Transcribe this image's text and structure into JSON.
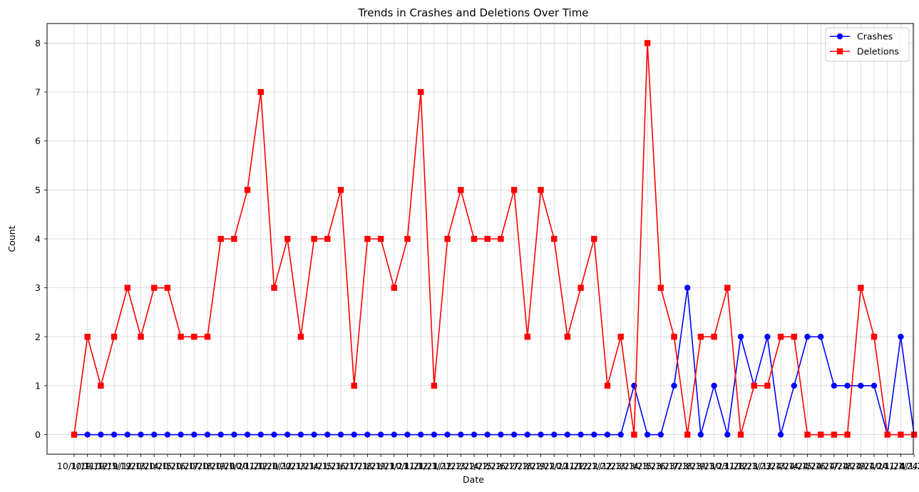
{
  "chart_data": {
    "type": "line",
    "title": "Trends in Crashes and Deletions Over Time",
    "xlabel": "Date",
    "ylabel": "Count",
    "ylim": [
      -0.4,
      8.4
    ],
    "yticks": [
      0,
      1,
      2,
      3,
      4,
      5,
      6,
      7,
      8
    ],
    "grid": true,
    "legend_position": "top-right",
    "x_tick_labels_overlapping": true,
    "categories": [
      "10/1/19",
      "10/1/19",
      "11/1/19",
      "12/1/19",
      "1/1/20",
      "2/1/20",
      "3/1/20",
      "4/1/20",
      "5/1/20",
      "6/1/20",
      "7/1/20",
      "8/1/20",
      "9/1/20",
      "10/1/20",
      "11/1/20",
      "12/1/20",
      "1/1/21",
      "2/1/21",
      "3/1/21",
      "4/1/21",
      "5/1/21",
      "6/1/21",
      "7/1/21",
      "8/1/21",
      "9/1/21",
      "10/1/21",
      "11/1/21",
      "12/1/21",
      "1/1/22",
      "2/1/22",
      "3/1/22",
      "4/1/22",
      "5/1/22",
      "6/1/22",
      "7/1/22",
      "8/1/22",
      "9/1/22",
      "10/1/22",
      "11/1/22",
      "12/1/22",
      "1/1/23",
      "2/1/23",
      "3/1/23",
      "4/1/23",
      "5/1/23",
      "6/1/23",
      "7/1/23",
      "8/1/23",
      "9/1/23",
      "10/1/23",
      "11/1/23",
      "12/1/23",
      "1/1/24",
      "2/1/24",
      "3/1/24",
      "4/1/24",
      "5/1/24",
      "6/1/24",
      "7/1/24",
      "8/1/24",
      "9/1/24",
      "10/1/24",
      "11/1/24",
      "4/1/24"
    ],
    "series": [
      {
        "name": "Crashes",
        "color": "#0000ff",
        "marker": "circle",
        "values": [
          0,
          0,
          0,
          0,
          0,
          0,
          0,
          0,
          0,
          0,
          0,
          0,
          0,
          0,
          0,
          0,
          0,
          0,
          0,
          0,
          0,
          0,
          0,
          0,
          0,
          0,
          0,
          0,
          0,
          0,
          0,
          0,
          0,
          0,
          0,
          0,
          0,
          0,
          0,
          0,
          0,
          0,
          1,
          0,
          0,
          1,
          3,
          0,
          1,
          0,
          2,
          1,
          2,
          0,
          1,
          2,
          2,
          1,
          1,
          1,
          1,
          0,
          2,
          0
        ]
      },
      {
        "name": "Deletions",
        "color": "#ff0000",
        "marker": "square",
        "values": [
          0,
          2,
          1,
          2,
          3,
          2,
          3,
          3,
          2,
          2,
          2,
          4,
          4,
          5,
          7,
          3,
          4,
          2,
          4,
          4,
          5,
          1,
          4,
          4,
          3,
          4,
          7,
          1,
          4,
          5,
          4,
          4,
          4,
          5,
          2,
          5,
          4,
          2,
          3,
          4,
          1,
          2,
          0,
          8,
          3,
          2,
          0,
          2,
          2,
          3,
          0,
          1,
          1,
          2,
          2,
          0,
          0,
          0,
          0,
          3,
          2,
          0,
          0,
          0
        ]
      }
    ]
  }
}
